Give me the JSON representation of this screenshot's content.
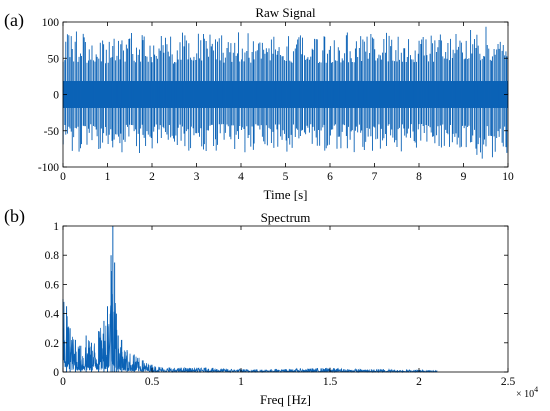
{
  "colors": {
    "line": "#0b62b6",
    "axes": "#000000",
    "background": "#ffffff"
  },
  "chart_data": [
    {
      "panel_label": "(a)",
      "type": "line",
      "title": "Raw Signal",
      "xlabel": "Time [s]",
      "ylabel": "",
      "xlim": [
        0,
        10
      ],
      "ylim": [
        -100,
        100
      ],
      "xticks": [
        "0",
        "1",
        "2",
        "3",
        "4",
        "5",
        "6",
        "7",
        "8",
        "9",
        "10"
      ],
      "yticks": [
        "-100",
        "-50",
        "0",
        "50",
        "100"
      ],
      "grid": false,
      "description": "dense vibration signal, amplitude about ±30 with periodic impulses up to about ±90",
      "series": [
        {
          "envelope_x": [
            0,
            0.5,
            1,
            1.5,
            2,
            2.5,
            3,
            3.5,
            4,
            4.5,
            5,
            5.5,
            6,
            6.5,
            7,
            7.5,
            8,
            8.5,
            9,
            9.5,
            10
          ],
          "core_amplitude": 30,
          "spike_max": [
            90,
            85,
            82,
            88,
            86,
            80,
            100,
            84,
            87,
            83,
            86,
            82,
            85,
            88,
            84,
            86,
            83,
            87,
            90,
            97,
            92
          ]
        }
      ]
    },
    {
      "panel_label": "(b)",
      "type": "line",
      "title": "Spectrum",
      "xlabel": "Freq [Hz]",
      "ylabel": "",
      "xlim": [
        0,
        25000
      ],
      "ylim": [
        0,
        1
      ],
      "xticks": [
        "0",
        "0.5",
        "1",
        "1.5",
        "2",
        "2.5"
      ],
      "yticks": [
        "0",
        "0.2",
        "0.4",
        "0.6",
        "0.8",
        "1"
      ],
      "x_multiplier": "× 10",
      "x_multiplier_exp": "4",
      "grid": false,
      "series": [
        {
          "x": [
            0,
            200,
            400,
            700,
            1000,
            1300,
            1600,
            2000,
            2300,
            2500,
            2700,
            2800,
            2900,
            3000,
            3100,
            3300,
            3600,
            4000,
            4500,
            5000,
            6000,
            8000,
            10000,
            12000,
            14000,
            15000,
            16000,
            18000,
            20000,
            21000
          ],
          "y": [
            0.5,
            0.45,
            0.3,
            0.22,
            0.18,
            0.25,
            0.2,
            0.28,
            0.35,
            0.45,
            0.8,
            1.0,
            0.75,
            0.4,
            0.25,
            0.22,
            0.15,
            0.12,
            0.08,
            0.05,
            0.03,
            0.03,
            0.02,
            0.02,
            0.025,
            0.03,
            0.02,
            0.02,
            0.015,
            0.01
          ]
        }
      ]
    }
  ]
}
